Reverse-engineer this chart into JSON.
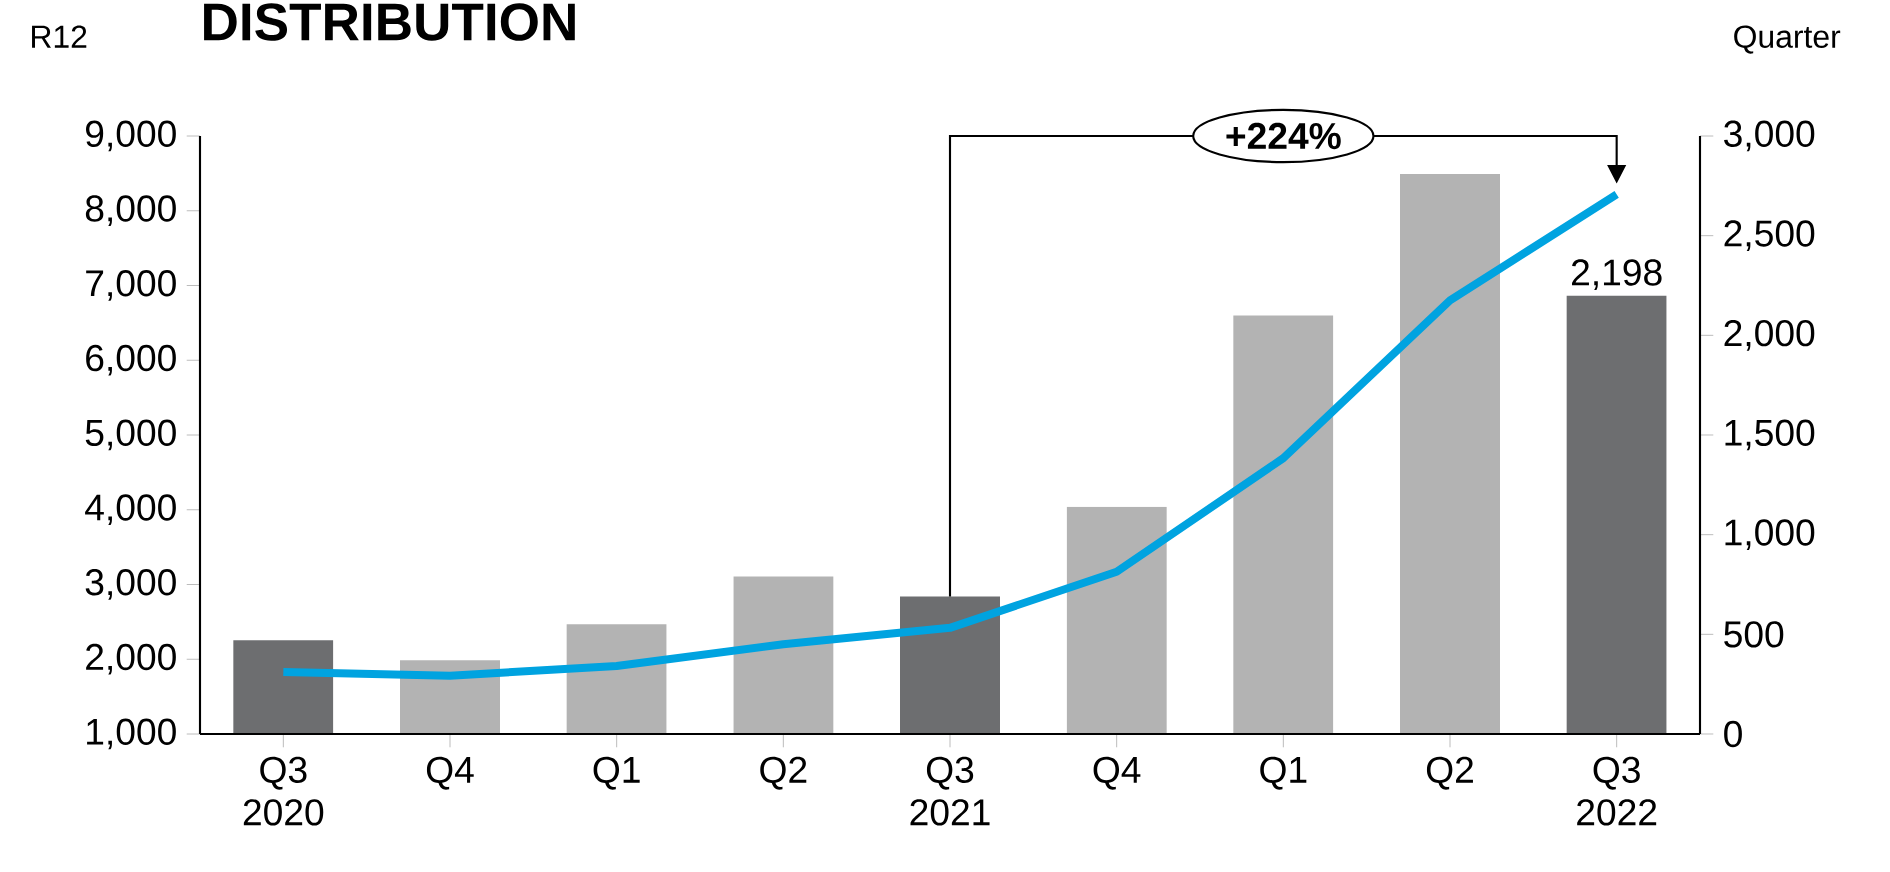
{
  "chart_data": {
    "type": "bar",
    "title": "DISTRIBUTION",
    "ylabel": "R12",
    "y2label": "Quarter",
    "categories": [
      "Q3 2020",
      "Q4",
      "Q1",
      "Q2",
      "Q3 2021",
      "Q4",
      "Q1",
      "Q2",
      "Q3 2022"
    ],
    "series": [
      {
        "axis": "y2",
        "colors": [
          "#6d6e70",
          "#b3b3b3",
          "#b3b3b3",
          "#b3b3b3",
          "#6d6e70",
          "#b3b3b3",
          "#b3b3b3",
          "#b3b3b3",
          "#6d6e70"
        ],
        "values": [
          470,
          370,
          550,
          790,
          690,
          1140,
          2100,
          2810,
          2198
        ],
        "value_labels": [
          null,
          null,
          null,
          null,
          null,
          null,
          null,
          null,
          "2,198"
        ]
      },
      {
        "type": "line",
        "color": "#00a3e0",
        "values": [
          1830,
          1780,
          1910,
          2200,
          2420,
          3170,
          4690,
          6800,
          8220
        ]
      }
    ],
    "ylim": [
      1000,
      9000
    ],
    "yticks": [
      {
        "value": 1000,
        "label": "1,000"
      },
      {
        "value": 2000,
        "label": "2,000"
      },
      {
        "value": 3000,
        "label": "3,000"
      },
      {
        "value": 4000,
        "label": "4,000"
      },
      {
        "value": 5000,
        "label": "5,000"
      },
      {
        "value": 6000,
        "label": "6,000"
      },
      {
        "value": 7000,
        "label": "7,000"
      },
      {
        "value": 8000,
        "label": "8,000"
      },
      {
        "value": 9000,
        "label": "9,000"
      }
    ],
    "y2lim": [
      0,
      3000
    ],
    "y2ticks": [
      0,
      500,
      {
        "value": 1000,
        "label": "1,000"
      },
      {
        "value": 1500,
        "label": "1,500"
      },
      {
        "value": 2000,
        "label": "2,000"
      },
      {
        "value": 2500,
        "label": "2,500"
      },
      {
        "value": 3000,
        "label": "3,000"
      }
    ],
    "annotations": [
      "+224%"
    ],
    "grid": false
  }
}
